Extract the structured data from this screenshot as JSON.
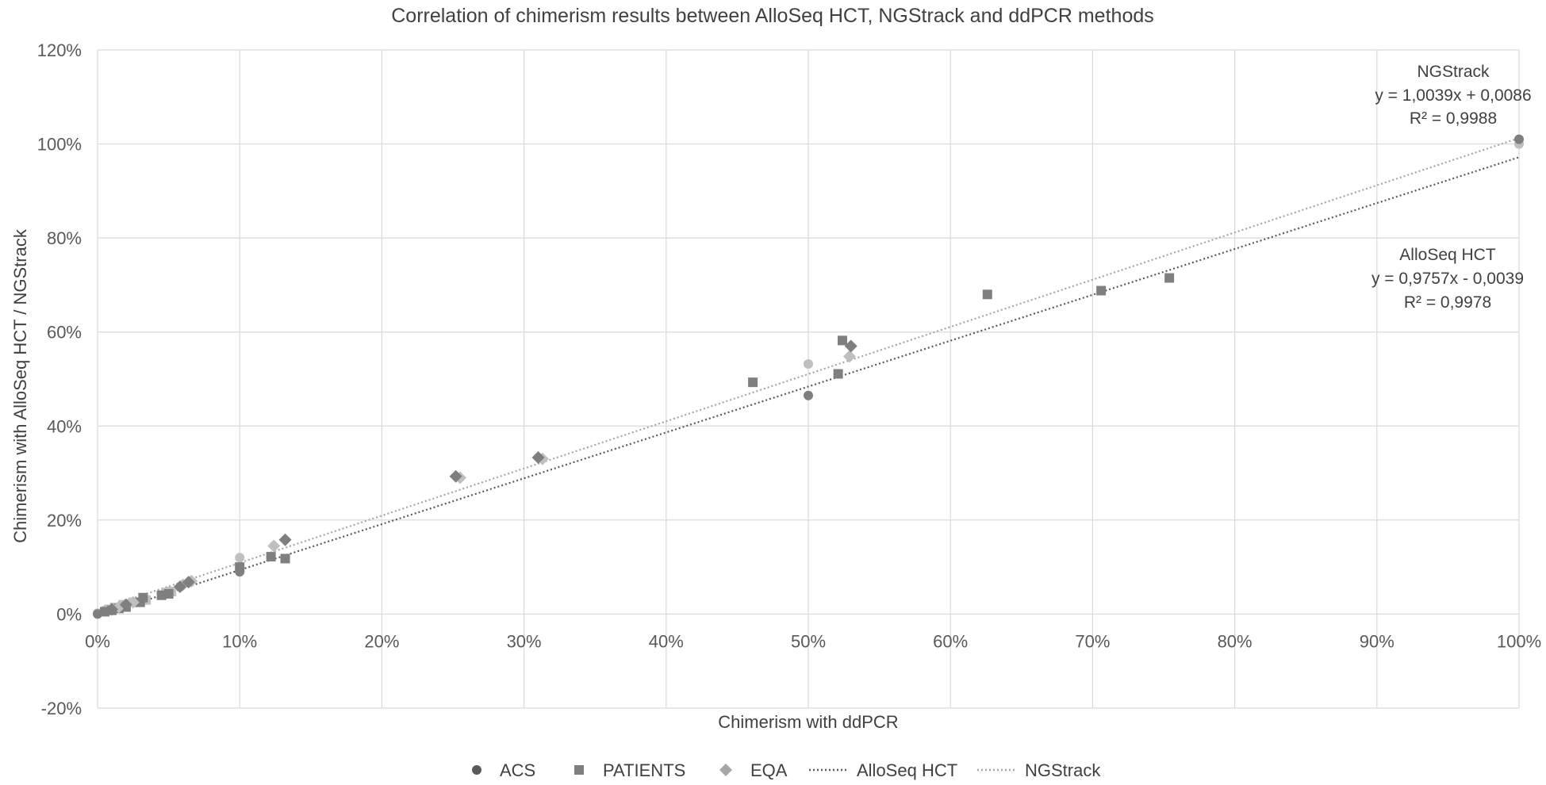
{
  "chart_data": {
    "type": "scatter",
    "title": "Correlation of chimerism results between AlloSeq HCT, NGStrack and ddPCR methods",
    "xlabel": "Chimerism with ddPCR",
    "ylabel": "Chimerism with AlloSeq HCT / NGStrack",
    "xlim": [
      0,
      1
    ],
    "ylim": [
      -0.2,
      1.2
    ],
    "xticks": [
      0,
      0.1,
      0.2,
      0.3,
      0.4,
      0.5,
      0.6,
      0.7,
      0.8,
      0.9,
      1.0
    ],
    "yticks": [
      -0.2,
      0,
      0.2,
      0.4,
      0.6,
      0.8,
      1.0,
      1.2
    ],
    "xtick_labels": [
      "0%",
      "10%",
      "20%",
      "30%",
      "40%",
      "50%",
      "60%",
      "70%",
      "80%",
      "90%",
      "100%"
    ],
    "ytick_labels": [
      "-20%",
      "0%",
      "20%",
      "40%",
      "60%",
      "80%",
      "100%",
      "120%"
    ],
    "grid": true,
    "legend_position": "bottom",
    "colors": {
      "alloseq_marker": "#7f7f7f",
      "ngstrack_marker": "#bfbfbf",
      "alloseq_line": "#595959",
      "ngstrack_line": "#a6a6a6",
      "grid": "#d9d9d9"
    },
    "series": [
      {
        "name": "ACS",
        "marker": "circle",
        "alloseq": [
          [
            0,
            0
          ],
          [
            0.005,
            0.005
          ],
          [
            0.1,
            0.09
          ],
          [
            0.5,
            0.465
          ],
          [
            1.0,
            1.01
          ]
        ],
        "ngstrack": [
          [
            0,
            0.002
          ],
          [
            0.005,
            0.008
          ],
          [
            0.1,
            0.12
          ],
          [
            0.5,
            0.532
          ],
          [
            1.0,
            1.0
          ]
        ]
      },
      {
        "name": "PATIENTS",
        "marker": "square",
        "alloseq": [
          [
            0.005,
            0.005
          ],
          [
            0.01,
            0.008
          ],
          [
            0.015,
            0.012
          ],
          [
            0.02,
            0.015
          ],
          [
            0.03,
            0.025
          ],
          [
            0.032,
            0.035
          ],
          [
            0.045,
            0.04
          ],
          [
            0.05,
            0.043
          ],
          [
            0.1,
            0.1
          ],
          [
            0.122,
            0.122
          ],
          [
            0.132,
            0.118
          ],
          [
            0.461,
            0.493
          ],
          [
            0.521,
            0.511
          ],
          [
            0.524,
            0.582
          ],
          [
            0.626,
            0.68
          ],
          [
            0.706,
            0.688
          ],
          [
            0.754,
            0.715
          ]
        ],
        "ngstrack": [
          [
            0.008,
            0.01
          ],
          [
            0.012,
            0.014
          ],
          [
            0.018,
            0.02
          ],
          [
            0.025,
            0.025
          ],
          [
            0.034,
            0.03
          ],
          [
            0.048,
            0.046
          ],
          [
            0.052,
            0.048
          ]
        ]
      },
      {
        "name": "EQA",
        "marker": "diamond",
        "alloseq": [
          [
            0.01,
            0.01
          ],
          [
            0.02,
            0.02
          ],
          [
            0.058,
            0.058
          ],
          [
            0.064,
            0.068
          ],
          [
            0.132,
            0.158
          ],
          [
            0.252,
            0.293
          ],
          [
            0.31,
            0.333
          ],
          [
            0.53,
            0.57
          ]
        ],
        "ngstrack": [
          [
            0.015,
            0.015
          ],
          [
            0.025,
            0.025
          ],
          [
            0.06,
            0.062
          ],
          [
            0.066,
            0.07
          ],
          [
            0.124,
            0.145
          ],
          [
            0.255,
            0.29
          ],
          [
            0.313,
            0.33
          ],
          [
            0.529,
            0.548
          ]
        ]
      }
    ],
    "trendlines": [
      {
        "name": "AlloSeq HCT",
        "slope": 0.9757,
        "intercept": -0.0039,
        "label_lines": [
          "AlloSeq HCT",
          "y = 0,9757x - 0,0039",
          "R² = 0,9978"
        ]
      },
      {
        "name": "NGStrack",
        "slope": 1.0039,
        "intercept": 0.0086,
        "label_lines": [
          "NGStrack",
          "y = 1,0039x + 0,0086",
          "R² = 0,9988"
        ]
      }
    ]
  }
}
